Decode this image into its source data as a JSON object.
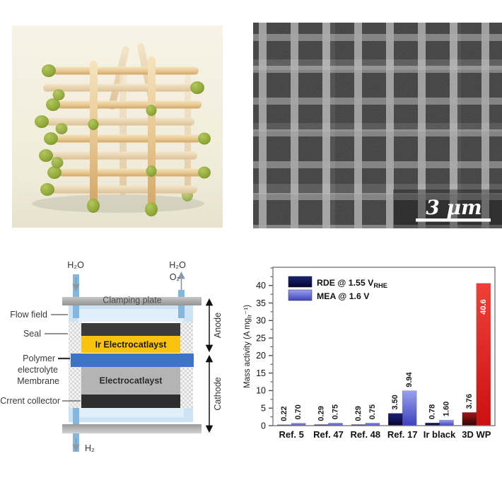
{
  "figure": {
    "background": "#ffffff"
  },
  "sem_panel": {
    "scale_bar_label": "3 μm"
  },
  "diagram": {
    "flows": {
      "water_in": "H₂O",
      "water_out": "H₂O",
      "oxygen_out": "O₂",
      "hydrogen_out": "H₂"
    },
    "labels": {
      "clamping_plate": "Clamping plate",
      "flow_field": "Flow field",
      "seal": "Seal",
      "ir_electrocatalyst": "Ir Electrocatlayst",
      "membrane_l1": "Polymer",
      "membrane_l2": "electrolyte",
      "membrane_l3": "Membrane",
      "electrocatalyst": "Electrocatlayst",
      "current_collector": "Crrent collector",
      "anode": "Anode",
      "cathode": "Cathode"
    },
    "colors": {
      "membrane": "#3d74c6",
      "ir_catalyst": "#fcc210",
      "catalyst": "#b4b4b4",
      "collector": "#343434",
      "flow_field": "#cbe3f4",
      "tube": "#85b7dc",
      "plate": "#a9a9a9"
    }
  },
  "chart_data": {
    "type": "bar",
    "title": "",
    "ylabel_pre": "Mass activity (A mg",
    "ylabel_sub": "Ir",
    "ylabel_post": "⁻¹)",
    "categories": [
      "Ref. 5",
      "Ref. 47",
      "Ref. 48",
      "Ref. 17",
      "Ir black",
      "3D WP"
    ],
    "series": [
      {
        "name": "RDE @ 1.55 V_RHE",
        "values": [
          0.22,
          0.29,
          0.29,
          3.5,
          0.78,
          3.76
        ],
        "labels": [
          "0.22",
          "0.29",
          "0.29",
          "3.50",
          "0.78",
          "3.76"
        ]
      },
      {
        "name": "MEA @ 1.6 V",
        "values": [
          0.7,
          0.75,
          0.75,
          9.94,
          1.6,
          40.6
        ],
        "labels": [
          "0.70",
          "0.75",
          "0.75",
          "9.94",
          "1.60",
          "40.6"
        ]
      }
    ],
    "legend": {
      "position": "top-left",
      "rde_pre": "RDE @ 1.55 V",
      "rde_sub": "RHE",
      "mea": "MEA @ 1.6 V"
    },
    "ylim": [
      0,
      45.2
    ],
    "yticks": [
      0,
      5,
      10,
      15,
      20,
      25,
      30,
      35,
      40
    ],
    "minor_tick_step": 2.5,
    "grid": false,
    "highlight_category": "3D WP",
    "colors": {
      "rde_top": "#1c2277",
      "rde_bottom": "#05052e",
      "mea_top": "#9aa0ee",
      "mea_bottom": "#3c42be",
      "rde_highlight_top": "#a81414",
      "rde_highlight_bottom": "#2e0404",
      "mea_highlight_top": "#f04038",
      "mea_highlight_bottom": "#ce0f12",
      "label_color": "#1a1a1a",
      "inside_label_color": "#ffffff",
      "axis_color": "#7a7a7a"
    }
  }
}
